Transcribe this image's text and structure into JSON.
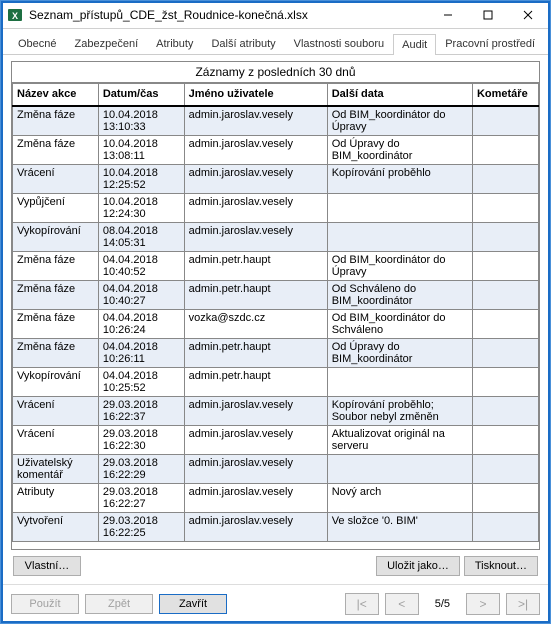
{
  "window": {
    "title": "Seznam_přístupů_CDE_žst_Roudnice-konečná.xlsx"
  },
  "tabs": {
    "items": [
      {
        "label": "Obecné"
      },
      {
        "label": "Zabezpečení"
      },
      {
        "label": "Atributy"
      },
      {
        "label": "Další atributy"
      },
      {
        "label": "Vlastnosti souboru"
      },
      {
        "label": "Audit"
      },
      {
        "label": "Pracovní prostředí"
      }
    ],
    "active_index": 5
  },
  "list": {
    "caption": "Záznamy z posledních 30 dnů",
    "columns": [
      "Název akce",
      "Datum/čas",
      "Jméno uživatele",
      "Další data",
      "Kometáře"
    ],
    "rows": [
      {
        "akce": "Změna fáze",
        "datum": "10.04.2018 13:10:33",
        "user": "admin.jaroslav.vesely",
        "data": "Od BIM_koordinátor do Úpravy",
        "koment": ""
      },
      {
        "akce": "Změna fáze",
        "datum": "10.04.2018 13:08:11",
        "user": "admin.jaroslav.vesely",
        "data": "Od Úpravy do BIM_koordinátor",
        "koment": ""
      },
      {
        "akce": "Vrácení",
        "datum": "10.04.2018 12:25:52",
        "user": "admin.jaroslav.vesely",
        "data": "Kopírování proběhlo",
        "koment": ""
      },
      {
        "akce": "Vypůjčení",
        "datum": "10.04.2018 12:24:30",
        "user": "admin.jaroslav.vesely",
        "data": "",
        "koment": ""
      },
      {
        "akce": "Vykopírování",
        "datum": "08.04.2018 14:05:31",
        "user": "admin.jaroslav.vesely",
        "data": "",
        "koment": ""
      },
      {
        "akce": "Změna fáze",
        "datum": "04.04.2018 10:40:52",
        "user": "admin.petr.haupt",
        "data": "Od BIM_koordinátor do Úpravy",
        "koment": ""
      },
      {
        "akce": "Změna fáze",
        "datum": "04.04.2018 10:40:27",
        "user": "admin.petr.haupt",
        "data": "Od Schváleno do BIM_koordinátor",
        "koment": ""
      },
      {
        "akce": "Změna fáze",
        "datum": "04.04.2018 10:26:24",
        "user": "vozka@szdc.cz",
        "data": "Od BIM_koordinátor do Schváleno",
        "koment": ""
      },
      {
        "akce": "Změna fáze",
        "datum": "04.04.2018 10:26:11",
        "user": "admin.petr.haupt",
        "data": "Od Úpravy do BIM_koordinátor",
        "koment": ""
      },
      {
        "akce": "Vykopírování",
        "datum": "04.04.2018 10:25:52",
        "user": "admin.petr.haupt",
        "data": "",
        "koment": ""
      },
      {
        "akce": "Vrácení",
        "datum": "29.03.2018 16:22:37",
        "user": "admin.jaroslav.vesely",
        "data": "Kopírování proběhlo; Soubor nebyl změněn",
        "koment": ""
      },
      {
        "akce": "Vrácení",
        "datum": "29.03.2018 16:22:30",
        "user": "admin.jaroslav.vesely",
        "data": "Aktualizovat originál na serveru",
        "koment": ""
      },
      {
        "akce": "Uživatelský komentář",
        "datum": "29.03.2018 16:22:29",
        "user": "admin.jaroslav.vesely",
        "data": "",
        "koment": ""
      },
      {
        "akce": "Atributy",
        "datum": "29.03.2018 16:22:27",
        "user": "admin.jaroslav.vesely",
        "data": "Nový arch",
        "koment": ""
      },
      {
        "akce": "Vytvoření",
        "datum": "29.03.2018 16:22:25",
        "user": "admin.jaroslav.vesely",
        "data": "Ve složce '0. BIM'",
        "koment": ""
      }
    ]
  },
  "buttons": {
    "custom": "Vlastní…",
    "save_as": "Uložit jako…",
    "print": "Tisknout…",
    "apply": "Použít",
    "back": "Zpět",
    "close": "Zavřít"
  },
  "pager": {
    "first": "|<",
    "prev": "<",
    "next": ">",
    "last": ">|",
    "indicator": "5/5"
  },
  "colors": {
    "alt_row": "#e8eef7",
    "accent": "#1a6cc5",
    "border": "#888888"
  }
}
